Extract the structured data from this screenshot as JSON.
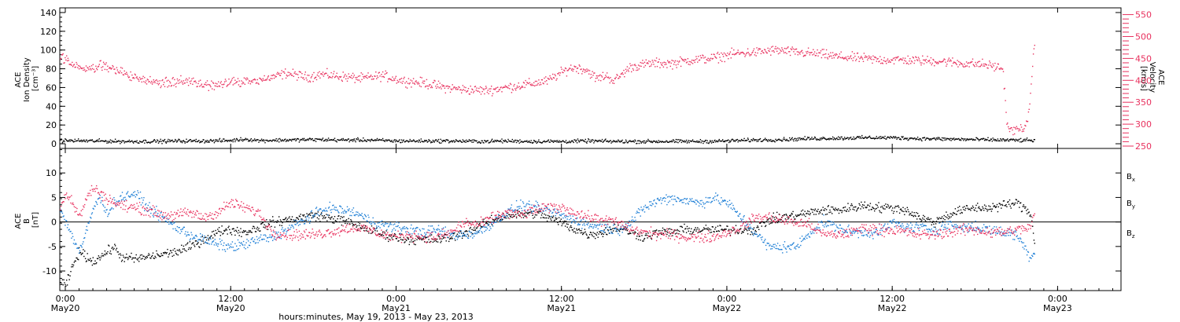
{
  "chart_data": {
    "type": "scatter",
    "xlabel": "hours:minutes, May 19, 2013 - May 23, 2013",
    "x_range_hours": [
      23.6,
      100.6
    ],
    "x_ticks": [
      {
        "hour": 24,
        "time": "0:00",
        "date": "May20"
      },
      {
        "hour": 36,
        "time": "12:00",
        "date": "May20"
      },
      {
        "hour": 48,
        "time": "0:00",
        "date": "May21"
      },
      {
        "hour": 60,
        "time": "12:00",
        "date": "May21"
      },
      {
        "hour": 72,
        "time": "0:00",
        "date": "May22"
      },
      {
        "hour": 84,
        "time": "12:00",
        "date": "May22"
      },
      {
        "hour": 96,
        "time": "0:00",
        "date": "May23"
      }
    ],
    "panels": [
      {
        "name": "density-velocity",
        "left_axis": {
          "label_lines": [
            "ACE",
            "Ion Density",
            "[cm⁻³]"
          ],
          "range": [
            -5,
            145
          ],
          "ticks": [
            0,
            20,
            40,
            60,
            80,
            100,
            120,
            140
          ]
        },
        "right_axis": {
          "label_lines": [
            "ACE",
            "Velocity",
            "[km/s]"
          ],
          "range": [
            250,
            560
          ],
          "ticks": [
            250,
            300,
            350,
            400,
            450,
            500,
            550
          ],
          "color": "#e8315e"
        },
        "series": [
          {
            "key": "velocity",
            "axis": "right",
            "color": "#e8315e",
            "noise": 9,
            "x": [
              23.6,
              24.5,
              25.5,
              26.5,
              28,
              29.5,
              31,
              32.5,
              34,
              35.5,
              37,
              38.5,
              39.5,
              40,
              41.5,
              42.5,
              44,
              45.5,
              47,
              48.5,
              50,
              51.5,
              53,
              54.5,
              56,
              57.5,
              59,
              59.5,
              60.5,
              61,
              61.8,
              62.5,
              63.2,
              63.8,
              65,
              66.5,
              68,
              69.5,
              71,
              72.5,
              74,
              75.5,
              77,
              78.5,
              80,
              81.5,
              83,
              84.5,
              86,
              87.5,
              89,
              90.5,
              91.5,
              92,
              92.3,
              92.6,
              93.2,
              93.8,
              94.3
            ],
            "y": [
              455,
              440,
              425,
              438,
              420,
              400,
              393,
              402,
              388,
              395,
              398,
              405,
              412,
              418,
              408,
              415,
              410,
              405,
              412,
              400,
              395,
              385,
              380,
              378,
              385,
              392,
              400,
              410,
              428,
              430,
              425,
              405,
              412,
              400,
              432,
              440,
              440,
              448,
              452,
              462,
              465,
              470,
              465,
              462,
              455,
              452,
              448,
              448,
              446,
              445,
              440,
              438,
              432,
              428,
              300,
              285,
              290,
              300,
              490
            ]
          },
          {
            "key": "ion-density",
            "axis": "left",
            "color": "#000000",
            "noise": 1.6,
            "x": [
              23.6,
              26,
              28,
              30,
              32,
              34,
              36,
              37,
              38,
              40,
              42,
              44,
              46,
              48,
              50,
              52,
              54,
              56,
              58,
              60,
              62,
              64,
              66,
              68,
              70,
              72,
              74,
              76,
              78,
              80,
              82,
              84,
              86,
              88,
              90,
              92,
              94.3
            ],
            "y": [
              4,
              3.5,
              3,
              3,
              3.5,
              3.5,
              4,
              5.5,
              4,
              4.5,
              5,
              4.5,
              4.5,
              3.5,
              3.5,
              3.5,
              3,
              3.5,
              3,
              3,
              3.5,
              3,
              3,
              3,
              3,
              3.5,
              4.5,
              5,
              6,
              6.5,
              7,
              7,
              6,
              5.5,
              5,
              4.5,
              4
            ]
          }
        ]
      },
      {
        "name": "magnetic-field",
        "left_axis": {
          "label_lines": [
            "ACE",
            "B",
            "[nT]"
          ],
          "range": [
            -14,
            15
          ],
          "ticks": [
            -10,
            -5,
            0,
            5,
            10
          ]
        },
        "zero_line": true,
        "legend_position": "right",
        "series": [
          {
            "key": "bx",
            "name": "B",
            "subscript": "x",
            "color": "#000000",
            "noise": 0.8,
            "x": [
              23.6,
              24,
              24.5,
              25,
              25.5,
              26,
              26.5,
              27,
              27.5,
              28,
              29,
              30,
              31,
              32,
              33,
              34,
              35,
              35.5,
              36,
              37,
              38,
              39,
              40,
              41,
              42,
              43,
              44,
              45,
              46,
              47,
              48,
              49,
              50,
              51,
              52,
              53,
              54,
              55,
              56,
              57,
              58,
              59,
              60,
              61,
              62,
              63,
              64,
              65,
              66,
              67,
              68,
              69,
              70,
              71,
              72,
              73,
              74,
              75,
              76,
              77,
              78,
              79,
              80,
              81,
              82,
              83,
              84,
              85,
              86,
              87,
              88,
              89,
              90,
              91,
              92,
              93,
              94,
              94.3
            ],
            "y": [
              -12,
              -13,
              -9,
              -6,
              -7,
              -8,
              -7,
              -6,
              -5,
              -7,
              -7.5,
              -7,
              -6.5,
              -6,
              -5,
              -3.5,
              -2,
              -1.5,
              -1.5,
              -2,
              -1,
              0,
              0.5,
              1,
              1.5,
              1,
              0.5,
              -0.5,
              -1.5,
              -2.5,
              -3,
              -3.5,
              -3.5,
              -3.5,
              -3,
              -2,
              -1,
              0.5,
              1.5,
              1.5,
              2,
              1,
              0,
              -1.5,
              -2.5,
              -2,
              -1,
              -2,
              -3,
              -2,
              -2,
              -1.5,
              -1.5,
              -1.5,
              -1.5,
              -1.5,
              -1.5,
              0.5,
              1,
              1.5,
              2,
              2.5,
              2.5,
              3,
              3.5,
              3,
              3,
              2.5,
              1,
              0,
              1.5,
              2.5,
              3,
              3,
              3.5,
              4,
              2,
              -4
            ]
          },
          {
            "key": "by",
            "name": "B",
            "subscript": "y",
            "color": "#1e7fd6",
            "noise": 0.9,
            "x": [
              23.6,
              24,
              24.5,
              25,
              25.5,
              26,
              26.5,
              27,
              27.5,
              28,
              29,
              30,
              31,
              32,
              33,
              34,
              35,
              36,
              37,
              38,
              39,
              40,
              41,
              42,
              43,
              44,
              45,
              46,
              47,
              48,
              49,
              50,
              51,
              52,
              53,
              54,
              55,
              56,
              57,
              58,
              59,
              60,
              61,
              62,
              63,
              64,
              65,
              66,
              67,
              68,
              69,
              70,
              71,
              72,
              73,
              74,
              75,
              76,
              77,
              78,
              79,
              80,
              81,
              82,
              83,
              84,
              85,
              86,
              87,
              88,
              89,
              90,
              91,
              92,
              93,
              94,
              94.3
            ],
            "y": [
              3,
              0,
              -3,
              -6,
              -2,
              3,
              5,
              2,
              4,
              5,
              6,
              3,
              1,
              -1,
              -2.5,
              -3.5,
              -4.5,
              -5,
              -4.5,
              -3.5,
              -3,
              -1.5,
              0,
              1.5,
              3,
              2.5,
              2,
              0.5,
              -0.5,
              -1,
              -1.5,
              -2,
              -1.5,
              -2.5,
              -2.5,
              -2,
              0,
              2,
              3.5,
              3,
              2.5,
              1.5,
              0.5,
              -0.5,
              -1,
              -1.5,
              0,
              3,
              4.5,
              5,
              4.5,
              4,
              5,
              4,
              1,
              -2,
              -5,
              -5,
              -5,
              -2,
              0,
              -1,
              -2,
              -2,
              -2,
              0,
              -1,
              -1,
              -1.5,
              -0.5,
              -1,
              -1,
              -1.5,
              -2,
              -2.5,
              -7,
              -6
            ]
          },
          {
            "key": "bz",
            "name": "B",
            "subscript": "z",
            "color": "#e8315e",
            "noise": 0.9,
            "x": [
              23.6,
              24,
              24.5,
              25,
              25.5,
              26,
              26.5,
              27,
              27.5,
              28,
              29,
              30,
              31,
              32,
              33,
              34,
              35,
              36,
              37,
              38,
              39,
              40,
              41,
              42,
              43,
              44,
              45,
              46,
              47,
              48,
              49,
              50,
              51,
              52,
              53,
              54,
              55,
              56,
              57,
              58,
              59,
              60,
              61,
              62,
              63,
              64,
              65,
              66,
              67,
              68,
              69,
              70,
              71,
              72,
              73,
              74,
              75,
              76,
              77,
              78,
              79,
              80,
              81,
              82,
              83,
              84,
              85,
              86,
              87,
              88,
              89,
              90,
              91,
              92,
              93,
              94,
              94.3
            ],
            "y": [
              3,
              6,
              4,
              1,
              5,
              7,
              6,
              5,
              4,
              3.5,
              3,
              2.5,
              1.5,
              1.5,
              2,
              1,
              2,
              4,
              3,
              2,
              -2,
              -2.5,
              -2.5,
              -2.5,
              -2,
              -1.5,
              -1,
              -1.5,
              -2.5,
              -3,
              -2.5,
              -3,
              -3,
              -2,
              0,
              -0.5,
              1,
              2,
              1.5,
              2.5,
              3,
              3,
              2,
              1,
              0.5,
              0,
              -1.5,
              -2,
              -2.5,
              -2.5,
              -3,
              -3,
              -3,
              -2,
              -1,
              1,
              1,
              0.5,
              0,
              -0.5,
              -2.5,
              -2.5,
              -2,
              -1,
              -1.5,
              -1.5,
              -2,
              -2.5,
              -2.5,
              -2,
              -1.5,
              -1.5,
              -2,
              -2,
              -1.5,
              -1,
              2
            ]
          }
        ]
      }
    ]
  }
}
